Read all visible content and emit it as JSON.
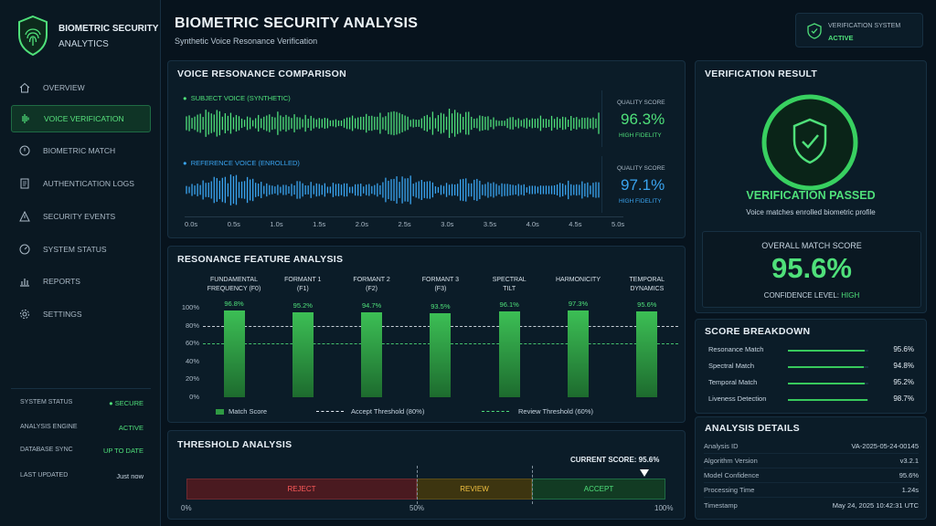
{
  "brand": {
    "line1": "BIOMETRIC SECURITY",
    "line2": "ANALYTICS"
  },
  "nav": [
    {
      "label": "OVERVIEW",
      "icon": "home-icon"
    },
    {
      "label": "VOICE VERIFICATION",
      "icon": "waveform-icon"
    },
    {
      "label": "BIOMETRIC MATCH",
      "icon": "fingerprint-icon"
    },
    {
      "label": "AUTHENTICATION LOGS",
      "icon": "document-icon"
    },
    {
      "label": "SECURITY EVENTS",
      "icon": "alert-icon"
    },
    {
      "label": "SYSTEM STATUS",
      "icon": "gauge-icon"
    },
    {
      "label": "REPORTS",
      "icon": "chart-icon"
    },
    {
      "label": "SETTINGS",
      "icon": "gear-icon"
    }
  ],
  "system": {
    "status_label": "SYSTEM STATUS",
    "status_value": "SECURE",
    "engine_label": "ANALYSIS ENGINE",
    "engine_value": "ACTIVE",
    "db_label": "DATABASE SYNC",
    "db_value": "UP TO DATE",
    "updated_label": "LAST UPDATED",
    "updated_value": "Just now"
  },
  "header": {
    "title": "BIOMETRIC SECURITY ANALYSIS",
    "subtitle": "Synthetic Voice Resonance Verification"
  },
  "verification_system": {
    "label": "VERIFICATION SYSTEM",
    "value": "ACTIVE"
  },
  "voice": {
    "title": "VOICE RESONANCE COMPARISON",
    "subject_label": "SUBJECT VOICE (SYNTHETIC)",
    "reference_label": "REFERENCE VOICE (ENROLLED)",
    "subject_quality": {
      "label": "QUALITY SCORE",
      "value": "96.3%",
      "note": "HIGH FIDELITY"
    },
    "reference_quality": {
      "label": "QUALITY SCORE",
      "value": "97.1%",
      "note": "HIGH FIDELITY"
    },
    "time_ticks": [
      "0.0s",
      "0.5s",
      "1.0s",
      "1.5s",
      "2.0s",
      "2.5s",
      "3.0s",
      "3.5s",
      "4.0s",
      "4.5s",
      "5.0s"
    ]
  },
  "resonance": {
    "title": "RESONANCE FEATURE ANALYSIS",
    "features": [
      {
        "line1": "FUNDAMENTAL",
        "line2": "FREQUENCY (F0)"
      },
      {
        "line1": "FORMANT 1",
        "line2": "(F1)"
      },
      {
        "line1": "FORMANT 2",
        "line2": "(F2)"
      },
      {
        "line1": "FORMANT 3",
        "line2": "(F3)"
      },
      {
        "line1": "SPECTRAL",
        "line2": "TILT"
      },
      {
        "line1": "HARMONICITY",
        "line2": ""
      },
      {
        "line1": "TEMPORAL",
        "line2": "DYNAMICS"
      }
    ],
    "legend": {
      "match": "Match Score",
      "accept": "Accept Threshold (80%)",
      "review": "Review Threshold (60%)"
    }
  },
  "chart_data": {
    "type": "bar",
    "categories": [
      "FUNDAMENTAL FREQUENCY (F0)",
      "FORMANT 1 (F1)",
      "FORMANT 2 (F2)",
      "FORMANT 3 (F3)",
      "SPECTRAL TILT",
      "HARMONICITY",
      "TEMPORAL DYNAMICS"
    ],
    "values": [
      96.8,
      95.2,
      94.7,
      93.5,
      96.1,
      97.3,
      95.6
    ],
    "value_labels": [
      "96.8%",
      "95.2%",
      "94.7%",
      "93.5%",
      "96.1%",
      "97.3%",
      "95.6%"
    ],
    "yticks": [
      "100%",
      "80%",
      "60%",
      "40%",
      "20%",
      "0%"
    ],
    "ylim": [
      0,
      100
    ],
    "accept_threshold": 80,
    "review_threshold": 60,
    "bar_color": "#2f9a43"
  },
  "threshold": {
    "title": "THRESHOLD ANALYSIS",
    "current_label": "CURRENT SCORE: 95.6%",
    "current_value": 95.6,
    "zones": [
      "REJECT",
      "REVIEW",
      "ACCEPT"
    ],
    "ticks": [
      "0%",
      "50%",
      "100%"
    ]
  },
  "result": {
    "title": "VERIFICATION RESULT",
    "status": "VERIFICATION PASSED",
    "desc": "Voice matches enrolled biometric profile",
    "overall_label": "OVERALL MATCH SCORE",
    "overall_value": "95.6%",
    "confidence_label": "CONFIDENCE LEVEL:",
    "confidence_value": "HIGH"
  },
  "breakdown": {
    "title": "SCORE BREAKDOWN",
    "rows": [
      {
        "label": "Resonance Match",
        "value": "95.6%",
        "level": 0.956
      },
      {
        "label": "Spectral Match",
        "value": "94.8%",
        "level": 0.948
      },
      {
        "label": "Temporal Match",
        "value": "95.2%",
        "level": 0.952
      },
      {
        "label": "Liveness Detection",
        "value": "98.7%",
        "level": 0.987
      }
    ]
  },
  "details": {
    "title": "ANALYSIS DETAILS",
    "rows": [
      {
        "label": "Analysis ID",
        "value": "VA-2025-05-24-00145"
      },
      {
        "label": "Algorithm Version",
        "value": "v3.2.1"
      },
      {
        "label": "Model Confidence",
        "value": "95.6%"
      },
      {
        "label": "Processing Time",
        "value": "1.24s"
      },
      {
        "label": "Timestamp",
        "value": "May 24, 2025 10:42:31 UTC"
      }
    ]
  },
  "colors": {
    "accent": "#4fe07a",
    "blue": "#3aa4f0",
    "reject": "#6b1f26",
    "review": "#5a4a12",
    "accept": "#14502b"
  }
}
